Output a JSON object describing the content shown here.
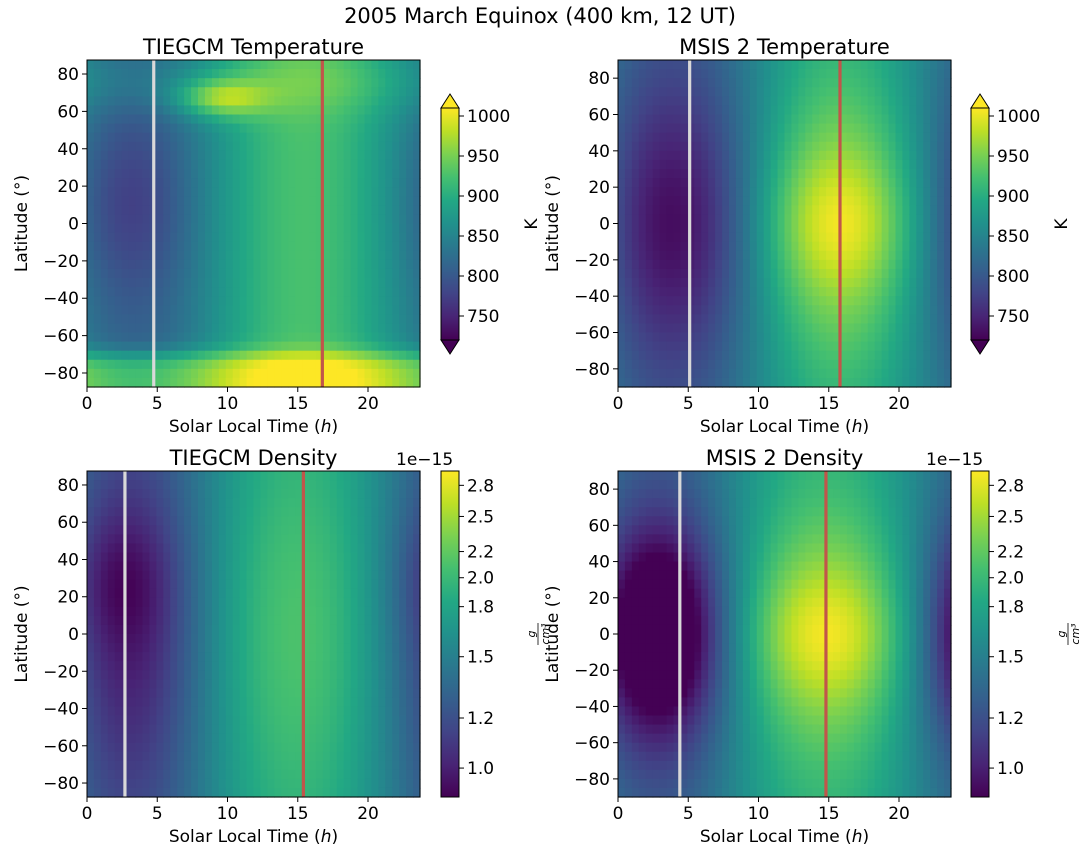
{
  "figure": {
    "title": "2005 March Equinox  (400 km, 12 UT)"
  },
  "colors": {
    "white_line": "#d9d9d9",
    "red_line": "#c1554a"
  },
  "chart_data": [
    {
      "type": "heatmap",
      "title": "TIEGCM Temperature",
      "xlabel": "Solar Local Time (h)",
      "xlabel_main": "Solar Local Time (",
      "xlabel_var": "h",
      "xlabel_close": ")",
      "ylabel": "Latitude (°)",
      "xlim": [
        0,
        23.7
      ],
      "ylim": [
        -87.5,
        87.5
      ],
      "xticks": [
        0,
        5,
        10,
        15,
        20
      ],
      "yticks": [
        -80,
        -60,
        -40,
        -20,
        0,
        20,
        40,
        60,
        80
      ],
      "vlines": [
        {
          "x": 4.75,
          "color": "white"
        },
        {
          "x": 16.75,
          "color": "red"
        }
      ],
      "colorbar": {
        "label": "K",
        "ticks": [
          750,
          800,
          850,
          900,
          950,
          1000
        ],
        "range": [
          720,
          1010
        ],
        "extend": "both",
        "scale": "linear",
        "offset": ""
      },
      "approximate_field": {
        "base": 870,
        "diurnal_amp": 55,
        "peak_lt": 15.5,
        "pole_boost_south": 110,
        "south_lat": -70,
        "lat_falloff": 0.12,
        "north_blob": {
          "lt": 9.5,
          "lat": 67,
          "amp": 90
        }
      }
    },
    {
      "type": "heatmap",
      "title": "MSIS 2 Temperature",
      "xlabel": "Solar Local Time (h)",
      "xlabel_main": "Solar Local Time (",
      "xlabel_var": "h",
      "xlabel_close": ")",
      "ylabel": "Latitude (°)",
      "xlim": [
        0,
        23.7
      ],
      "ylim": [
        -90,
        90
      ],
      "xticks": [
        0,
        5,
        10,
        15,
        20
      ],
      "yticks": [
        -80,
        -60,
        -40,
        -20,
        0,
        20,
        40,
        60,
        80
      ],
      "vlines": [
        {
          "x": 5.1,
          "color": "white"
        },
        {
          "x": 15.8,
          "color": "red"
        }
      ],
      "colorbar": {
        "label": "K",
        "ticks": [
          750,
          800,
          850,
          900,
          950,
          1000
        ],
        "range": [
          720,
          1010
        ],
        "extend": "both",
        "scale": "linear",
        "offset": ""
      },
      "approximate_field": {
        "base": 850,
        "diurnal_amp": 120,
        "peak_lt": 15.8,
        "trough_lt": 4.5,
        "lat_width": 55
      }
    },
    {
      "type": "heatmap",
      "title": "TIEGCM Density",
      "xlabel": "Solar Local Time (h)",
      "xlabel_main": "Solar Local Time (",
      "xlabel_var": "h",
      "xlabel_close": ")",
      "ylabel": "Latitude (°)",
      "xlim": [
        0,
        23.7
      ],
      "ylim": [
        -87.5,
        87.5
      ],
      "xticks": [
        0,
        5,
        10,
        15,
        20
      ],
      "yticks": [
        -80,
        -60,
        -40,
        -20,
        0,
        20,
        40,
        60,
        80
      ],
      "vlines": [
        {
          "x": 2.7,
          "color": "white"
        },
        {
          "x": 15.4,
          "color": "red"
        }
      ],
      "colorbar": {
        "label": "g/cm³",
        "label_num": "g",
        "label_den": "cm³",
        "ticks": [
          1.0,
          1.2,
          1.5,
          1.8,
          2.0,
          2.2,
          2.5,
          2.8
        ],
        "range": [
          0.9,
          2.95
        ],
        "extend": "neither",
        "scale": "log",
        "offset": "1e−15"
      },
      "approximate_field": {
        "base": 1.55,
        "diurnal_amp": 0.55,
        "peak_lt": 15.0,
        "lat_width": 70
      }
    },
    {
      "type": "heatmap",
      "title": "MSIS 2 Density",
      "xlabel": "Solar Local Time (h)",
      "xlabel_main": "Solar Local Time (",
      "xlabel_var": "h",
      "xlabel_close": ")",
      "ylabel": "Latitude (°)",
      "xlim": [
        0,
        23.7
      ],
      "ylim": [
        -90,
        90
      ],
      "xticks": [
        0,
        5,
        10,
        15,
        20
      ],
      "yticks": [
        -80,
        -60,
        -40,
        -20,
        0,
        20,
        40,
        60,
        80
      ],
      "vlines": [
        {
          "x": 4.4,
          "color": "white"
        },
        {
          "x": 14.8,
          "color": "red"
        }
      ],
      "colorbar": {
        "label": "g/cm³",
        "label_num": "g",
        "label_den": "cm³",
        "ticks": [
          1.0,
          1.2,
          1.5,
          1.8,
          2.0,
          2.2,
          2.5,
          2.8
        ],
        "range": [
          0.9,
          2.95
        ],
        "extend": "neither",
        "scale": "log",
        "offset": "1e−15"
      },
      "approximate_field": {
        "base": 1.6,
        "diurnal_amp": 0.95,
        "peak_lt": 14.8,
        "lat_width": 45
      }
    }
  ]
}
